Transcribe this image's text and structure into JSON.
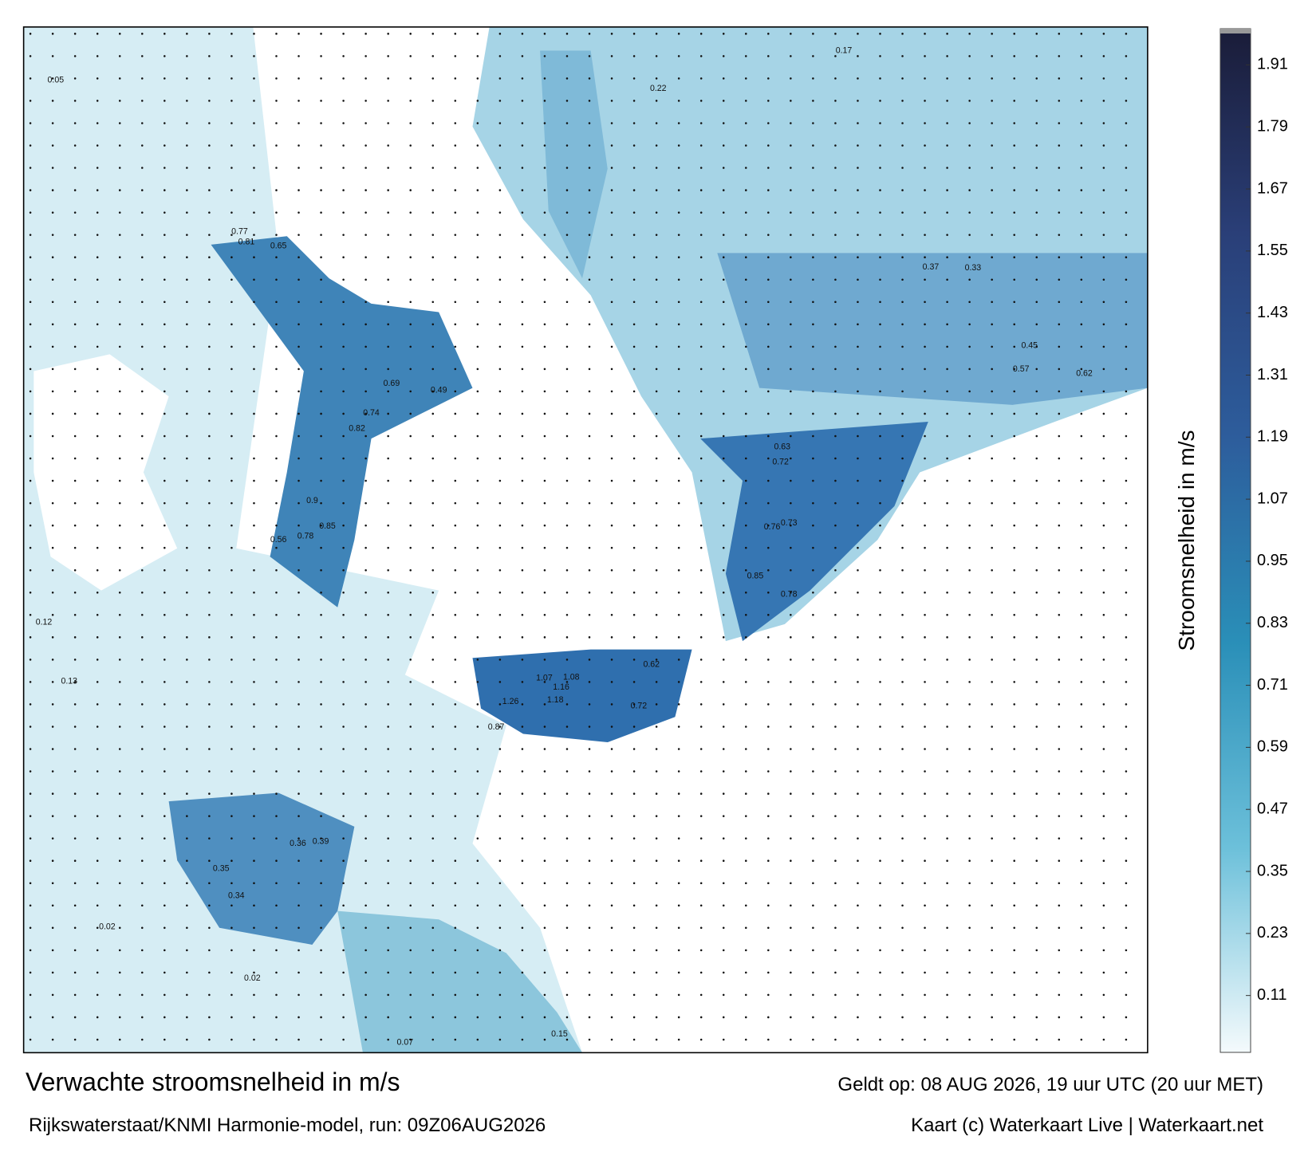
{
  "header": {
    "title": "Verwachte stroomsnelheid in m/s",
    "subtitle": "Rijkswaterstaat/KNMI Harmonie-model, run: 09Z06AUG2026"
  },
  "footer": {
    "valid_time": "Geldt op: 08 AUG 2026, 19 uur UTC (20 uur MET)",
    "credit": "Kaart (c) Waterkaart Live | Waterkaart.net"
  },
  "colorbar": {
    "label": "Stroomsnelheid in m/s",
    "clim": [
      0,
      1.98
    ],
    "ticks": [
      0.11,
      0.23,
      0.35,
      0.47,
      0.59,
      0.71,
      0.83,
      0.95,
      1.07,
      1.19,
      1.31,
      1.43,
      1.55,
      1.67,
      1.79,
      1.91
    ],
    "colors": [
      "#f4fafc",
      "#6cc0da",
      "#2a8fb8",
      "#2d5d9c",
      "#2a3f78",
      "#1a1c38"
    ]
  },
  "map": {
    "speed_labels": [
      0.77,
      0.81,
      0.65,
      0.69,
      0.49,
      0.74,
      0.82,
      0.9,
      0.85,
      0.78,
      0.56,
      1.07,
      1.08,
      1.16,
      1.18,
      1.26,
      0.62,
      0.72,
      0.87,
      0.63,
      0.72,
      0.76,
      0.73,
      0.85,
      0.78,
      0.36,
      0.39,
      0.35,
      0.34,
      0.45,
      0.57,
      0.62,
      0.37,
      0.33,
      0.17,
      0.22,
      0.05,
      0.12,
      0.13,
      0.02,
      0.02,
      0.15,
      0.07
    ]
  }
}
